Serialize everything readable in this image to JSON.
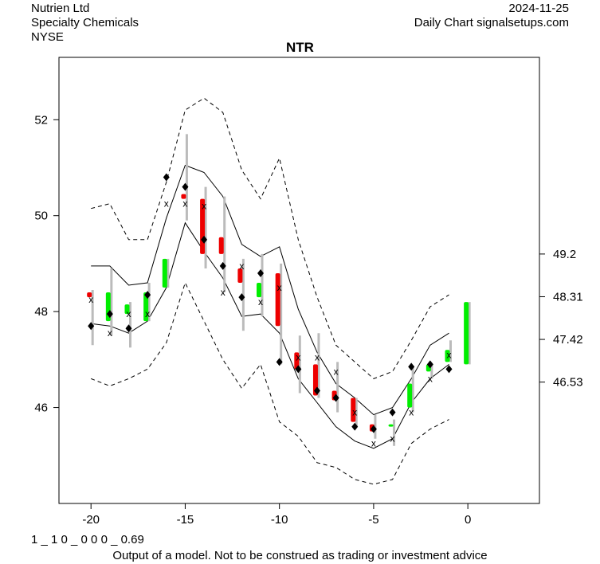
{
  "header": {
    "company": "Nutrien Ltd",
    "sector": "Specialty Chemicals",
    "exchange": "NYSE",
    "date": "2024-11-25",
    "source": "Daily Chart signalsetups.com"
  },
  "footer": {
    "code": "1 _ 1 0 _ 0 0 0 _ 0.69",
    "disclaimer": "Output of a model. Not to be construed as trading or investment advice"
  },
  "colors": {
    "up": "#00ee00",
    "down": "#ee0000",
    "wick": "#bbbbbb",
    "band": "#000000"
  },
  "chart_data": {
    "type": "candlestick",
    "title": "NTR",
    "xlim": [
      -21.7,
      3.8
    ],
    "ylim": [
      44.0,
      53.3
    ],
    "x_ticks": [
      -20,
      -15,
      -10,
      -5,
      0
    ],
    "x_tick_labels": [
      "-20",
      "-15",
      "-10",
      "-5",
      "0"
    ],
    "y_ticks_left": [
      46,
      48,
      50,
      52
    ],
    "y_ticks_left_labels": [
      "46",
      "48",
      "50",
      "52"
    ],
    "y_ticks_right": [
      49.2,
      48.31,
      47.42,
      46.53
    ],
    "y_ticks_right_labels": [
      "49.2",
      "48.31",
      "47.42",
      "46.53"
    ],
    "candles": [
      {
        "x": -20,
        "open": 48.4,
        "close": 48.3,
        "low": 47.3,
        "high": 48.45
      },
      {
        "x": -19,
        "open": 47.8,
        "close": 48.4,
        "low": 47.5,
        "high": 48.9
      },
      {
        "x": -18,
        "open": 47.95,
        "close": 48.15,
        "low": 47.25,
        "high": 48.2
      },
      {
        "x": -17,
        "open": 47.8,
        "close": 48.4,
        "low": 47.8,
        "high": 48.6
      },
      {
        "x": -16,
        "open": 48.5,
        "close": 49.1,
        "low": 48.5,
        "high": 49.1
      },
      {
        "x": -15,
        "open": 50.45,
        "close": 50.35,
        "low": 49.9,
        "high": 51.7
      },
      {
        "x": -14,
        "open": 50.35,
        "close": 49.2,
        "low": 48.9,
        "high": 50.6
      },
      {
        "x": -13,
        "open": 49.55,
        "close": 49.2,
        "low": 48.4,
        "high": 50.4
      },
      {
        "x": -12,
        "open": 48.9,
        "close": 48.6,
        "low": 47.6,
        "high": 49.1
      },
      {
        "x": -11,
        "open": 48.3,
        "close": 48.6,
        "low": 47.9,
        "high": 49.2
      },
      {
        "x": -10,
        "open": 48.8,
        "close": 47.7,
        "low": 46.9,
        "high": 49.0
      },
      {
        "x": -9,
        "open": 47.15,
        "close": 46.8,
        "low": 46.3,
        "high": 47.5
      },
      {
        "x": -8,
        "open": 46.9,
        "close": 46.25,
        "low": 46.2,
        "high": 47.55
      },
      {
        "x": -7,
        "open": 46.35,
        "close": 46.15,
        "low": 45.9,
        "high": 46.95
      },
      {
        "x": -6,
        "open": 46.2,
        "close": 45.7,
        "low": 45.6,
        "high": 46.2
      },
      {
        "x": -5,
        "open": 45.65,
        "close": 45.5,
        "low": 45.35,
        "high": 45.85
      },
      {
        "x": -4,
        "open": 45.6,
        "close": 45.65,
        "low": 45.2,
        "high": 45.75
      },
      {
        "x": -3,
        "open": 46.0,
        "close": 46.5,
        "low": 45.9,
        "high": 46.85
      },
      {
        "x": -2,
        "open": 46.75,
        "close": 46.9,
        "low": 46.6,
        "high": 46.9
      },
      {
        "x": -1,
        "open": 46.95,
        "close": 47.2,
        "low": 46.95,
        "high": 47.4
      },
      {
        "x": 0,
        "open": 46.9,
        "close": 48.2,
        "low": 46.9,
        "high": 48.2
      }
    ],
    "markers_diamond": [
      {
        "x": -20,
        "y": 47.7
      },
      {
        "x": -19,
        "y": 47.95
      },
      {
        "x": -18,
        "y": 47.65
      },
      {
        "x": -17,
        "y": 48.35
      },
      {
        "x": -16,
        "y": 50.8
      },
      {
        "x": -15,
        "y": 50.6
      },
      {
        "x": -14,
        "y": 49.5
      },
      {
        "x": -13,
        "y": 48.95
      },
      {
        "x": -12,
        "y": 48.3
      },
      {
        "x": -11,
        "y": 48.8
      },
      {
        "x": -10,
        "y": 46.95
      },
      {
        "x": -9,
        "y": 46.8
      },
      {
        "x": -8,
        "y": 46.35
      },
      {
        "x": -7,
        "y": 46.2
      },
      {
        "x": -6,
        "y": 45.6
      },
      {
        "x": -5,
        "y": 45.55
      },
      {
        "x": -4,
        "y": 45.9
      },
      {
        "x": -3,
        "y": 46.85
      },
      {
        "x": -2,
        "y": 46.9
      },
      {
        "x": -1,
        "y": 46.8
      }
    ],
    "markers_x": [
      {
        "x": -20,
        "y": 48.25
      },
      {
        "x": -19,
        "y": 47.55
      },
      {
        "x": -18,
        "y": 47.95
      },
      {
        "x": -17,
        "y": 47.95
      },
      {
        "x": -16,
        "y": 50.25
      },
      {
        "x": -15,
        "y": 50.25
      },
      {
        "x": -14,
        "y": 50.2
      },
      {
        "x": -13,
        "y": 48.4
      },
      {
        "x": -12,
        "y": 48.95
      },
      {
        "x": -11,
        "y": 48.2
      },
      {
        "x": -10,
        "y": 48.5
      },
      {
        "x": -9,
        "y": 47.05
      },
      {
        "x": -8,
        "y": 47.05
      },
      {
        "x": -7,
        "y": 46.75
      },
      {
        "x": -6,
        "y": 45.9
      },
      {
        "x": -5,
        "y": 45.25
      },
      {
        "x": -4,
        "y": 45.35
      },
      {
        "x": -3,
        "y": 45.9
      },
      {
        "x": -2,
        "y": 46.6
      },
      {
        "x": -1,
        "y": 47.1
      }
    ],
    "bands": {
      "x": [
        -20,
        -19,
        -18,
        -17,
        -16,
        -15,
        -14,
        -13,
        -12,
        -11,
        -10,
        -9,
        -8,
        -7,
        -6,
        -5,
        -4,
        -3,
        -2,
        -1
      ],
      "outer_upper": [
        50.15,
        50.25,
        49.5,
        49.5,
        50.7,
        52.2,
        52.45,
        52.15,
        50.95,
        50.35,
        51.2,
        49.5,
        48.3,
        47.3,
        46.95,
        46.6,
        46.75,
        47.4,
        48.1,
        48.35
      ],
      "inner_upper": [
        48.95,
        48.95,
        48.55,
        48.6,
        49.95,
        51.05,
        50.9,
        50.4,
        49.4,
        49.15,
        49.35,
        48.05,
        47.15,
        46.5,
        46.2,
        45.85,
        46.0,
        46.6,
        47.3,
        47.55
      ],
      "inner_lower": [
        47.75,
        47.7,
        47.55,
        47.8,
        48.5,
        49.85,
        49.25,
        48.7,
        47.9,
        47.95,
        47.55,
        46.6,
        46.1,
        45.6,
        45.3,
        45.15,
        45.35,
        46.1,
        46.6,
        46.9
      ],
      "outer_lower": [
        46.6,
        46.45,
        46.6,
        46.8,
        47.35,
        48.6,
        47.8,
        47.0,
        46.4,
        46.9,
        45.7,
        45.4,
        44.85,
        44.75,
        44.5,
        44.4,
        44.5,
        45.25,
        45.55,
        45.75
      ]
    }
  }
}
